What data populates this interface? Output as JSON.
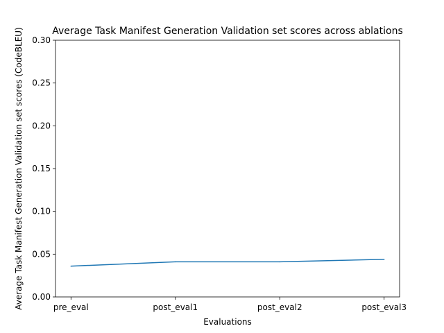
{
  "chart_data": {
    "type": "line",
    "title": "Average Task Manifest Generation Validation set scores across ablations",
    "xlabel": "Evaluations",
    "ylabel": "Average Task Manifest Generation Validation set scores (CodeBLEU)",
    "categories": [
      "pre_eval",
      "post_eval1",
      "post_eval2",
      "post_eval3"
    ],
    "series": [
      {
        "values": [
          0.036,
          0.041,
          0.041,
          0.044
        ],
        "color": "#1f77b4"
      }
    ],
    "ylim": [
      0.0,
      0.3
    ],
    "yticks": [
      0.0,
      0.05,
      0.1,
      0.15,
      0.2,
      0.25,
      0.3
    ],
    "ytick_labels": [
      "0.00",
      "0.05",
      "0.10",
      "0.15",
      "0.20",
      "0.25",
      "0.30"
    ],
    "grid": false,
    "legend": "none"
  }
}
